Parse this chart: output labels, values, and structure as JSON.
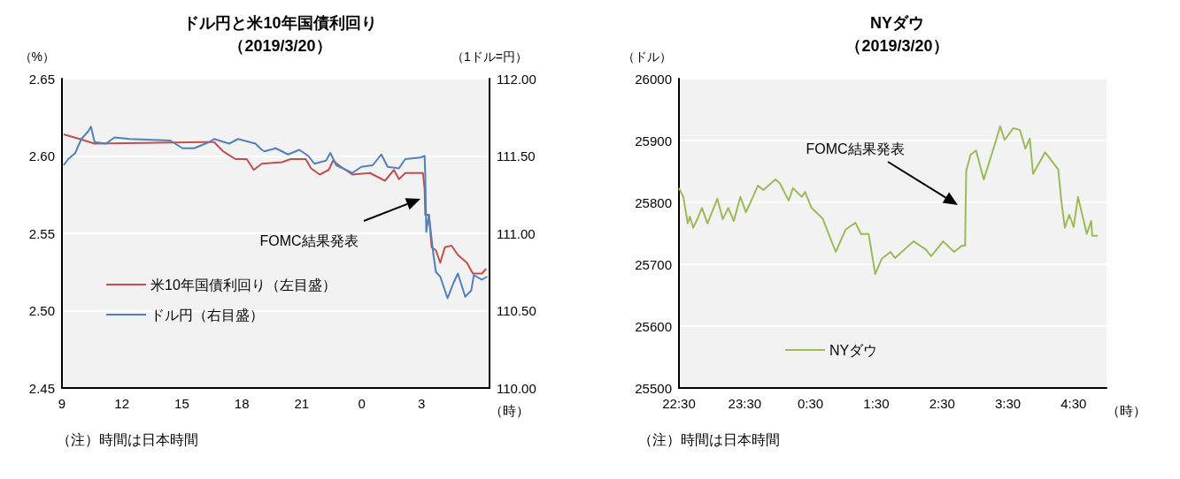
{
  "chart_data": [
    {
      "type": "line",
      "title": "ドル円と米10年国債利回り",
      "subtitle": "（2019/3/20）",
      "ylabel": "（%）",
      "y2label": "（1ドル=円）",
      "xlabel": "（時）",
      "xlim": [
        "2019-03-20T09:00",
        "2019-03-21T06:24"
      ],
      "xticks": [
        {
          "value": "2019-03-20T09:00",
          "label": "9"
        },
        {
          "value": "2019-03-20T12:00",
          "label": "12"
        },
        {
          "value": "2019-03-20T15:00",
          "label": "15"
        },
        {
          "value": "2019-03-20T18:00",
          "label": "18"
        },
        {
          "value": "2019-03-20T21:00",
          "label": "21"
        },
        {
          "value": "2019-03-21T00:00",
          "label": "0"
        },
        {
          "value": "2019-03-21T03:00",
          "label": "3"
        }
      ],
      "ylim": [
        2.45,
        2.65
      ],
      "yticks": [
        2.45,
        {
          "value": 2.5,
          "label": "2.50"
        },
        2.55,
        {
          "value": 2.6,
          "label": "2.60"
        },
        2.65
      ],
      "y2lim": [
        110,
        112
      ],
      "y2ticks": [
        {
          "value": 110,
          "label": "110.00"
        },
        {
          "value": 110.5,
          "label": "110.50"
        },
        {
          "value": 111,
          "label": "111.00"
        },
        {
          "value": 111.5,
          "label": "111.50"
        },
        {
          "value": 112,
          "label": "112.00"
        }
      ],
      "grid": "y",
      "legend": "bottom left",
      "marker": "none",
      "line_style": "solid",
      "annotations": [
        "FOMC結果発表",
        "（注）時間は日本時間"
      ],
      "series": [
        {
          "name": "米10年国債利回り（左目盛）",
          "color": "#c0504d",
          "x": [
            "2019-03-20T09:05",
            "2019-03-20T09:53",
            "2019-03-20T10:38",
            "2019-03-20T16:11",
            "2019-03-20T16:37",
            "2019-03-20T17:04",
            "2019-03-20T17:41",
            "2019-03-20T18:15",
            "2019-03-20T18:36",
            "2019-03-20T19:00",
            "2019-03-20T20:01",
            "2019-03-20T20:27",
            "2019-03-20T21:12",
            "2019-03-20T21:28",
            "2019-03-20T21:54",
            "2019-03-20T22:21",
            "2019-03-20T22:34",
            "2019-03-20T22:58",
            "2019-03-20T23:32",
            "2019-03-21T00:25",
            "2019-03-21T01:10",
            "2019-03-21T01:37",
            "2019-03-21T01:52",
            "2019-03-21T02:11",
            "2019-03-21T03:04",
            "2019-03-21T03:09",
            "2019-03-21T03:11",
            "2019-03-21T03:22",
            "2019-03-21T03:30",
            "2019-03-21T03:43",
            "2019-03-21T03:56",
            "2019-03-21T04:10",
            "2019-03-21T04:30",
            "2019-03-21T04:49",
            "2019-03-21T05:16",
            "2019-03-21T05:34",
            "2019-03-21T06:01",
            "2019-03-21T06:14"
          ],
          "values": [
            2.614,
            2.611,
            2.608,
            2.609,
            2.609,
            2.603,
            2.598,
            2.598,
            2.591,
            2.595,
            2.596,
            2.598,
            2.598,
            2.592,
            2.588,
            2.591,
            2.597,
            2.593,
            2.588,
            2.589,
            2.584,
            2.591,
            2.585,
            2.589,
            2.589,
            2.579,
            2.562,
            2.562,
            2.541,
            2.539,
            2.531,
            2.541,
            2.542,
            2.536,
            2.531,
            2.524,
            2.524,
            2.527
          ]
        },
        {
          "name": "ドル円（右目盛）",
          "color": "#4f81bd",
          "axis": "y2",
          "x": [
            "2019-03-20T09:05",
            "2019-03-20T09:19",
            "2019-03-20T09:40",
            "2019-03-20T09:58",
            "2019-03-20T10:19",
            "2019-03-20T10:27",
            "2019-03-20T10:38",
            "2019-03-20T11:12",
            "2019-03-20T11:38",
            "2019-03-20T12:23",
            "2019-03-20T14:25",
            "2019-03-20T15:02",
            "2019-03-20T15:37",
            "2019-03-20T16:22",
            "2019-03-20T16:37",
            "2019-03-20T17:22",
            "2019-03-20T17:49",
            "2019-03-20T18:41",
            "2019-03-20T19:00",
            "2019-03-20T19:08",
            "2019-03-20T19:42",
            "2019-03-20T20:19",
            "2019-03-20T20:53",
            "2019-03-20T21:20",
            "2019-03-20T21:38",
            "2019-03-20T22:13",
            "2019-03-20T22:26",
            "2019-03-20T22:44",
            "2019-03-20T23:32",
            "2019-03-20T23:59",
            "2019-03-21T00:33",
            "2019-03-21T00:59",
            "2019-03-21T01:18",
            "2019-03-21T01:52",
            "2019-03-21T02:11",
            "2019-03-21T02:56",
            "2019-03-21T03:09",
            "2019-03-21T03:11",
            "2019-03-21T03:14",
            "2019-03-21T03:22",
            "2019-03-21T03:35",
            "2019-03-21T03:43",
            "2019-03-21T03:56",
            "2019-03-21T04:18",
            "2019-03-21T04:36",
            "2019-03-21T04:49",
            "2019-03-21T05:11",
            "2019-03-21T05:29",
            "2019-03-21T05:37",
            "2019-03-21T06:01",
            "2019-03-21T06:17"
          ],
          "values": [
            111.44,
            111.48,
            111.52,
            111.61,
            111.66,
            111.69,
            111.59,
            111.58,
            111.62,
            111.61,
            111.6,
            111.55,
            111.55,
            111.59,
            111.61,
            111.58,
            111.61,
            111.58,
            111.54,
            111.53,
            111.55,
            111.51,
            111.54,
            111.5,
            111.45,
            111.47,
            111.52,
            111.44,
            111.39,
            111.43,
            111.44,
            111.51,
            111.43,
            111.42,
            111.48,
            111.49,
            111.5,
            111.38,
            111.01,
            111.12,
            110.87,
            110.75,
            110.72,
            110.58,
            110.68,
            110.74,
            110.59,
            110.63,
            110.73,
            110.7,
            110.72
          ]
        }
      ]
    },
    {
      "type": "line",
      "title": "NYダウ",
      "subtitle": "（2019/3/20）",
      "ylabel": "（ドル）",
      "xlabel": "（時）",
      "xlim": [
        "2019-03-20T22:30",
        "2019-03-21T05:00"
      ],
      "xticks": [
        {
          "value": "2019-03-20T22:30",
          "label": "22:30"
        },
        {
          "value": "2019-03-20T23:30",
          "label": "23:30"
        },
        {
          "value": "2019-03-21T00:30",
          "label": "0:30"
        },
        {
          "value": "2019-03-21T01:30",
          "label": "1:30"
        },
        {
          "value": "2019-03-21T02:30",
          "label": "2:30"
        },
        {
          "value": "2019-03-21T03:30",
          "label": "3:30"
        },
        {
          "value": "2019-03-21T04:30",
          "label": "4:30"
        }
      ],
      "ylim": [
        25500,
        26000
      ],
      "yticks": [
        25500,
        25600,
        25700,
        25800,
        25900,
        26000
      ],
      "grid": "y",
      "legend": "bottom left",
      "marker": "none",
      "line_style": "solid",
      "annotations": [
        "FOMC結果発表",
        "（注）時間は日本時間"
      ],
      "series": [
        {
          "name": "NYダウ",
          "color": "#9bbb59",
          "x": [
            "2019-03-20T22:30",
            "2019-03-20T22:34",
            "2019-03-20T22:38",
            "2019-03-20T22:40",
            "2019-03-20T22:43",
            "2019-03-20T22:47",
            "2019-03-20T22:51",
            "2019-03-20T22:56",
            "2019-03-20T23:05",
            "2019-03-20T23:10",
            "2019-03-20T23:15",
            "2019-03-20T23:20",
            "2019-03-20T23:26",
            "2019-03-20T23:31",
            "2019-03-20T23:35",
            "2019-03-20T23:42",
            "2019-03-20T23:47",
            "2019-03-20T23:58",
            "2019-03-21T00:02",
            "2019-03-21T00:10",
            "2019-03-21T00:14",
            "2019-03-21T00:22",
            "2019-03-21T00:25",
            "2019-03-21T00:31",
            "2019-03-21T00:41",
            "2019-03-21T00:53",
            "2019-03-21T01:02",
            "2019-03-21T01:11",
            "2019-03-21T01:16",
            "2019-03-21T01:23",
            "2019-03-21T01:29",
            "2019-03-21T01:35",
            "2019-03-21T01:43",
            "2019-03-21T01:47",
            "2019-03-21T02:04",
            "2019-03-21T02:15",
            "2019-03-21T02:20",
            "2019-03-21T02:31",
            "2019-03-21T02:41",
            "2019-03-21T02:48",
            "2019-03-21T02:51",
            "2019-03-21T02:52",
            "2019-03-21T02:56",
            "2019-03-21T03:01",
            "2019-03-21T03:08",
            "2019-03-21T03:19",
            "2019-03-21T03:23",
            "2019-03-21T03:27",
            "2019-03-21T03:35",
            "2019-03-21T03:41",
            "2019-03-21T03:46",
            "2019-03-21T03:50",
            "2019-03-21T03:53",
            "2019-03-21T04:04",
            "2019-03-21T04:16",
            "2019-03-21T04:19",
            "2019-03-21T04:22",
            "2019-03-21T04:26",
            "2019-03-21T04:30",
            "2019-03-21T04:34",
            "2019-03-21T04:42",
            "2019-03-21T04:46",
            "2019-03-21T04:47",
            "2019-03-21T04:52"
          ],
          "values": [
            25823,
            25809,
            25766,
            25777,
            25759,
            25774,
            25791,
            25766,
            25806,
            25773,
            25791,
            25770,
            25809,
            25784,
            25799,
            25827,
            25820,
            25837,
            25831,
            25803,
            25823,
            25809,
            25817,
            25791,
            25774,
            25720,
            25756,
            25767,
            25749,
            25749,
            25684,
            25709,
            25720,
            25710,
            25737,
            25724,
            25713,
            25737,
            25720,
            25730,
            25730,
            25851,
            25877,
            25884,
            25837,
            25899,
            25923,
            25901,
            25920,
            25917,
            25887,
            25903,
            25846,
            25881,
            25853,
            25799,
            25759,
            25780,
            25760,
            25809,
            25749,
            25770,
            25746,
            25746
          ]
        }
      ]
    }
  ]
}
